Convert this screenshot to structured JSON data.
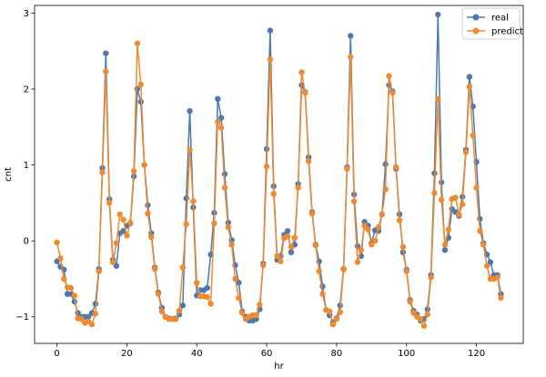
{
  "chart_data": {
    "type": "line",
    "title": "",
    "xlabel": "hr",
    "ylabel": "cnt",
    "xlim": [
      -6.4,
      133.4
    ],
    "ylim": [
      -1.35,
      3.1
    ],
    "xticks": [
      0,
      20,
      40,
      60,
      80,
      100,
      120
    ],
    "yticks": [
      -1,
      0,
      1,
      2,
      3
    ],
    "grid": false,
    "legend_position": "top-right",
    "series": [
      {
        "name": "real",
        "color": "#4c79b0",
        "marker": "o",
        "x": [
          0,
          1,
          2,
          3,
          4,
          5,
          6,
          7,
          8,
          9,
          10,
          11,
          12,
          13,
          14,
          15,
          16,
          17,
          18,
          19,
          20,
          21,
          22,
          23,
          24,
          25,
          26,
          27,
          28,
          29,
          30,
          31,
          32,
          33,
          34,
          35,
          36,
          37,
          38,
          39,
          40,
          41,
          42,
          43,
          44,
          45,
          46,
          47,
          48,
          49,
          50,
          51,
          52,
          53,
          54,
          55,
          56,
          57,
          58,
          59,
          60,
          61,
          62,
          63,
          64,
          65,
          66,
          67,
          68,
          69,
          70,
          71,
          72,
          73,
          74,
          75,
          76,
          77,
          78,
          79,
          80,
          81,
          82,
          83,
          84,
          85,
          86,
          87,
          88,
          89,
          90,
          91,
          92,
          93,
          94,
          95,
          96,
          97,
          98,
          99,
          100,
          101,
          102,
          103,
          104,
          105,
          106,
          107,
          108,
          109,
          110,
          111,
          112,
          113,
          114,
          115,
          116,
          117,
          118,
          119,
          120,
          121,
          122,
          123,
          124,
          125,
          126,
          127
        ],
        "values": [
          -0.27,
          -0.34,
          -0.38,
          -0.7,
          -0.7,
          -0.8,
          -0.95,
          -1.0,
          -1.0,
          -1.0,
          -0.95,
          -0.83,
          -0.37,
          0.96,
          2.47,
          0.55,
          -0.25,
          -0.33,
          0.1,
          0.13,
          0.2,
          0.23,
          0.85,
          2.0,
          1.83,
          1.0,
          0.47,
          0.1,
          -0.35,
          -0.68,
          -0.88,
          -1.0,
          -1.02,
          -1.03,
          -1.02,
          -0.97,
          -0.85,
          0.56,
          1.71,
          0.44,
          -0.72,
          -0.65,
          -0.65,
          -0.62,
          -0.18,
          0.37,
          1.87,
          1.62,
          0.88,
          0.24,
          0.01,
          -0.32,
          -0.55,
          -0.93,
          -1.0,
          -1.05,
          -1.05,
          -1.03,
          -0.9,
          -0.3,
          1.21,
          2.77,
          0.72,
          -0.25,
          -0.2,
          0.08,
          0.13,
          -0.15,
          -0.05,
          0.75,
          2.05,
          1.96,
          1.1,
          0.38,
          -0.05,
          -0.27,
          -0.6,
          -0.91,
          -0.98,
          -1.07,
          -1.02,
          -0.85,
          -0.37,
          0.97,
          2.7,
          0.61,
          -0.07,
          -0.2,
          0.25,
          0.2,
          -0.03,
          0.14,
          0.13,
          0.35,
          1.01,
          2.05,
          1.97,
          0.95,
          0.35,
          -0.15,
          -0.38,
          -0.78,
          -0.92,
          -0.97,
          -1.05,
          -1.03,
          -0.9,
          -0.45,
          0.89,
          2.98,
          0.77,
          -0.12,
          0.04,
          0.42,
          0.38,
          0.33,
          0.58,
          1.2,
          2.16,
          1.77,
          1.04,
          0.29,
          -0.03,
          -0.18,
          -0.28,
          -0.45,
          -0.45,
          -0.7
        ],
        "name_label": "real"
      },
      {
        "name": "predict",
        "color": "#ef8a2e",
        "marker": "o",
        "x": [
          0,
          1,
          2,
          3,
          4,
          5,
          6,
          7,
          8,
          9,
          10,
          11,
          12,
          13,
          14,
          15,
          16,
          17,
          18,
          19,
          20,
          21,
          22,
          23,
          24,
          25,
          26,
          27,
          28,
          29,
          30,
          31,
          32,
          33,
          34,
          35,
          36,
          37,
          38,
          39,
          40,
          41,
          42,
          43,
          44,
          45,
          46,
          47,
          48,
          49,
          50,
          51,
          52,
          53,
          54,
          55,
          56,
          57,
          58,
          59,
          60,
          61,
          62,
          63,
          64,
          65,
          66,
          67,
          68,
          69,
          70,
          71,
          72,
          73,
          74,
          75,
          76,
          77,
          78,
          79,
          80,
          81,
          82,
          83,
          84,
          85,
          86,
          87,
          88,
          89,
          90,
          91,
          92,
          93,
          94,
          95,
          96,
          97,
          98,
          99,
          100,
          101,
          102,
          103,
          104,
          105,
          106,
          107,
          108,
          109,
          110,
          111,
          112,
          113,
          114,
          115,
          116,
          117,
          118,
          119,
          120,
          121,
          122,
          123,
          124,
          125,
          126,
          127
        ],
        "values": [
          -0.02,
          -0.23,
          -0.5,
          -0.61,
          -0.62,
          -0.72,
          -1.02,
          -1.03,
          -1.08,
          -1.06,
          -1.1,
          -0.96,
          -0.4,
          0.9,
          2.23,
          0.5,
          -0.28,
          -0.03,
          0.35,
          0.28,
          0.07,
          0.24,
          0.92,
          2.6,
          2.06,
          1.0,
          0.36,
          0.05,
          -0.37,
          -0.7,
          -0.93,
          -1.0,
          -1.03,
          -1.03,
          -1.03,
          -0.92,
          -0.35,
          0.22,
          1.2,
          0.52,
          -0.55,
          -0.73,
          -0.73,
          -0.74,
          -0.83,
          0.23,
          1.57,
          1.49,
          0.7,
          0.18,
          -0.05,
          -0.5,
          -0.75,
          -0.95,
          -1.03,
          -1.0,
          -0.98,
          -0.98,
          -0.84,
          -0.32,
          0.98,
          2.39,
          0.62,
          -0.2,
          -0.27,
          0.04,
          0.06,
          -0.08,
          0.04,
          0.7,
          2.22,
          1.95,
          1.05,
          0.36,
          -0.06,
          -0.4,
          -0.7,
          -0.91,
          -0.93,
          -1.1,
          -1.03,
          -0.94,
          -0.38,
          0.95,
          2.42,
          0.52,
          -0.28,
          -0.12,
          0.2,
          0.15,
          -0.05,
          0.0,
          0.18,
          0.35,
          0.68,
          2.17,
          1.95,
          0.97,
          0.27,
          -0.08,
          -0.4,
          -0.8,
          -0.95,
          -1.0,
          -1.03,
          -1.12,
          -0.97,
          -0.48,
          0.63,
          1.87,
          0.54,
          -0.05,
          0.15,
          0.55,
          0.57,
          0.35,
          0.48,
          1.17,
          2.03,
          1.39,
          0.7,
          0.13,
          -0.05,
          -0.33,
          -0.5,
          -0.5,
          -0.48,
          -0.75
        ],
        "name_label": "predict"
      }
    ]
  }
}
